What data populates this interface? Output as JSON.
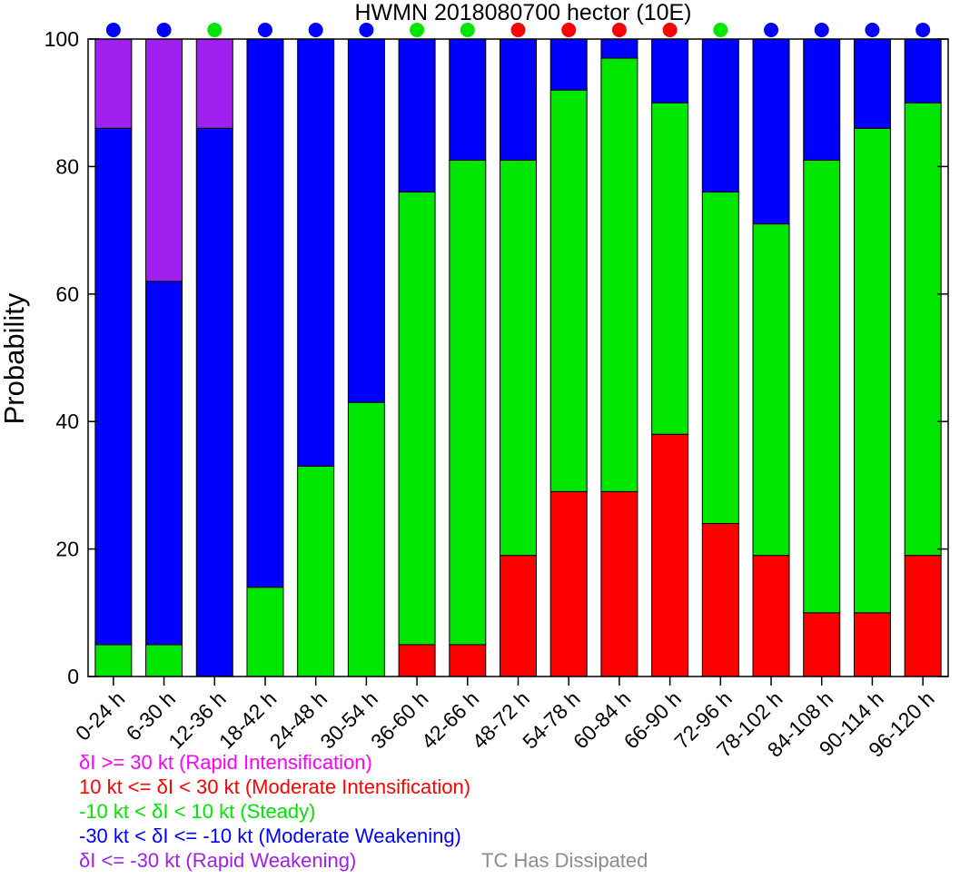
{
  "chart_data": {
    "type": "bar",
    "stacked": true,
    "title": "HWMN 2018080700 hector (10E)",
    "xlabel": "",
    "ylabel": "Probability",
    "ylim": [
      0,
      100
    ],
    "yticks": [
      0,
      20,
      40,
      60,
      80,
      100
    ],
    "grid": false,
    "categories": [
      "0-24 h",
      "6-30 h",
      "12-36 h",
      "18-42 h",
      "24-48 h",
      "30-54 h",
      "36-60 h",
      "42-66 h",
      "48-72 h",
      "54-78 h",
      "60-84 h",
      "66-90 h",
      "72-96 h",
      "78-102 h",
      "84-108 h",
      "90-114 h",
      "96-120 h"
    ],
    "series": [
      {
        "key": "rapid_intensification",
        "color": "#ff00ff",
        "values": [
          0,
          0,
          0,
          0,
          0,
          0,
          0,
          0,
          0,
          0,
          0,
          0,
          0,
          0,
          0,
          0,
          0
        ]
      },
      {
        "key": "moderate_intensification",
        "color": "#ff0000",
        "values": [
          0,
          0,
          0,
          0,
          0,
          0,
          5,
          5,
          19,
          29,
          29,
          38,
          24,
          19,
          10,
          10,
          19
        ]
      },
      {
        "key": "steady",
        "color": "#00e600",
        "values": [
          5,
          5,
          0,
          14,
          33,
          43,
          71,
          76,
          62,
          63,
          68,
          52,
          52,
          52,
          71,
          76,
          71
        ]
      },
      {
        "key": "moderate_weakening",
        "color": "#0000ff",
        "values": [
          81,
          57,
          86,
          86,
          67,
          57,
          24,
          19,
          19,
          8,
          3,
          10,
          24,
          29,
          19,
          14,
          10
        ]
      },
      {
        "key": "rapid_weakening",
        "color": "#a020f0",
        "values": [
          14,
          38,
          14,
          0,
          0,
          0,
          0,
          0,
          0,
          0,
          0,
          0,
          0,
          0,
          0,
          0,
          0
        ]
      }
    ],
    "indicator_dots": [
      "blue",
      "blue",
      "green",
      "blue",
      "blue",
      "blue",
      "green",
      "green",
      "red",
      "red",
      "red",
      "red",
      "green",
      "blue",
      "blue",
      "blue",
      "blue"
    ],
    "dot_colors": {
      "blue": "#0000ff",
      "green": "#00e600",
      "red": "#ff0000"
    },
    "legend": {
      "placement": "bottom-left",
      "entries": [
        {
          "text": "δI >= 30 kt (Rapid Intensification)",
          "color": "#ff00ff"
        },
        {
          "text": "10 kt <= δI < 30 kt (Moderate Intensification)",
          "color": "#ff0000"
        },
        {
          "text": "-10 kt < δI < 10 kt (Steady)",
          "color": "#00e600"
        },
        {
          "text": "-30 kt < δI <= -10 kt (Moderate Weakening)",
          "color": "#0000ff"
        },
        {
          "text": "δI <= -30 kt (Rapid Weakening)",
          "color": "#a020f0"
        }
      ],
      "dissipated": {
        "text": "TC Has Dissipated",
        "color": "#8c8c8c"
      }
    }
  }
}
